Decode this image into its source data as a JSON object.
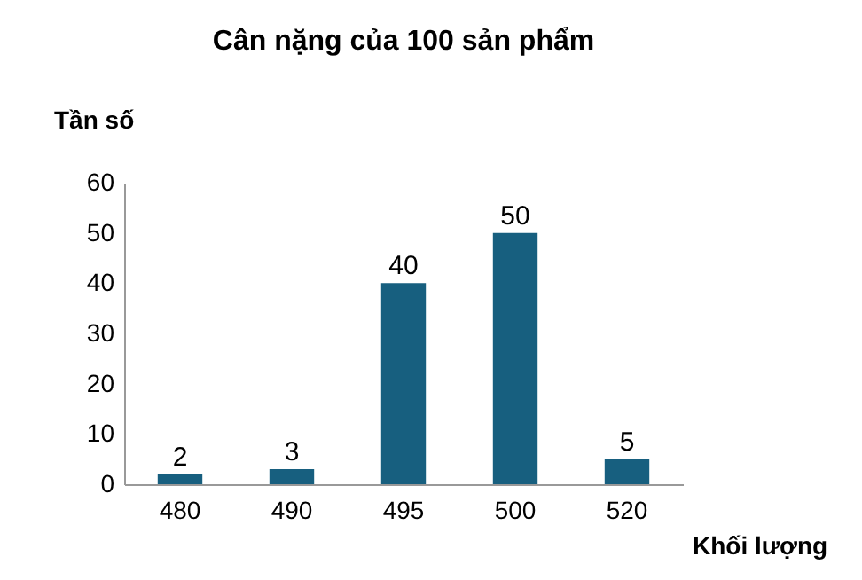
{
  "chart_data": {
    "type": "bar",
    "title": "Cân nặng của 100 sản phẩm",
    "xlabel": "Khối lượng",
    "ylabel": "Tần số",
    "categories": [
      "480",
      "490",
      "495",
      "500",
      "520"
    ],
    "values": [
      2,
      3,
      40,
      50,
      5
    ],
    "color": "#175f7f",
    "ylim": [
      0,
      60
    ],
    "yticks": [
      0,
      10,
      20,
      30,
      40,
      50,
      60
    ],
    "grid": false,
    "data_labels": true
  }
}
